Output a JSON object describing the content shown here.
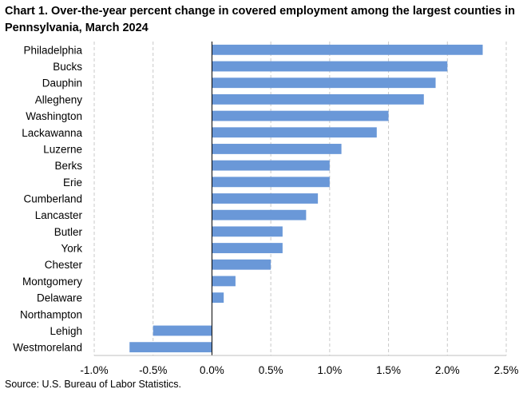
{
  "chart_data": {
    "type": "bar",
    "orientation": "horizontal",
    "title": "Chart 1. Over-the-year percent change in covered employment among the largest counties in Pennsylvania, March 2024",
    "source": "Source: U.S. Bureau of Labor Statistics.",
    "categories": [
      "Philadelphia",
      "Bucks",
      "Dauphin",
      "Allegheny",
      "Washington",
      "Lackawanna",
      "Luzerne",
      "Berks",
      "Erie",
      "Cumberland",
      "Lancaster",
      "Butler",
      "York",
      "Chester",
      "Montgomery",
      "Delaware",
      "Northampton",
      "Lehigh",
      "Westmoreland"
    ],
    "values": [
      2.3,
      2.0,
      1.9,
      1.8,
      1.5,
      1.4,
      1.1,
      1.0,
      1.0,
      0.9,
      0.8,
      0.6,
      0.6,
      0.5,
      0.2,
      0.1,
      0.0,
      -0.5,
      -0.7
    ],
    "xlim": [
      -1.0,
      2.5
    ],
    "xticks": [
      -1.0,
      -0.5,
      0.0,
      0.5,
      1.0,
      1.5,
      2.0,
      2.5
    ],
    "xtick_labels": [
      "-1.0%",
      "-0.5%",
      "0.0%",
      "0.5%",
      "1.0%",
      "1.5%",
      "2.0%",
      "2.5%"
    ],
    "grid": "vertical-dashed",
    "bar_color": "#6a98d8",
    "grid_color": "#c8c8c8",
    "axis_color": "#000000"
  }
}
